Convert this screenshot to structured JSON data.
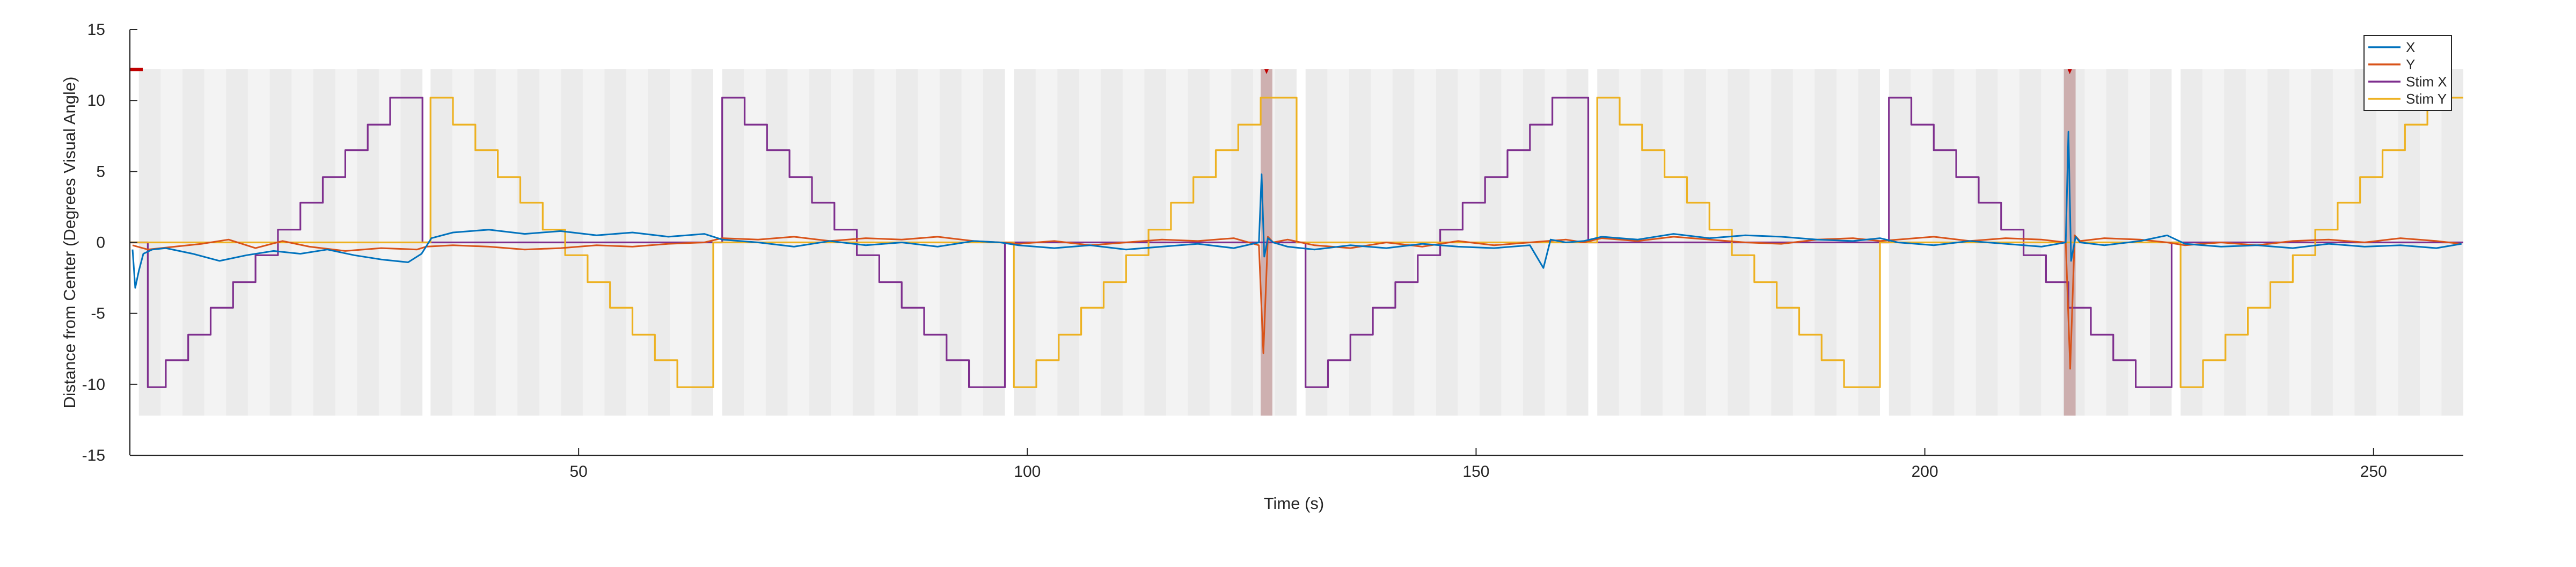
{
  "chart_data": {
    "type": "line",
    "title": "",
    "xlabel": "Time (s)",
    "ylabel": "Distance from Center (Degrees Visual Angle)",
    "xlim": [
      0,
      260
    ],
    "ylim": [
      -15,
      15
    ],
    "xticks": [
      50,
      100,
      150,
      200,
      250
    ],
    "yticks": [
      -15,
      -10,
      -5,
      0,
      5,
      10,
      15
    ],
    "grid": false,
    "legend_position": "top-right",
    "legend": [
      "X",
      "Y",
      "Stim X",
      "Stim Y"
    ],
    "colors": {
      "X": "#0072BD",
      "Y": "#D95319",
      "Stim X": "#7E2F8E",
      "Stim Y": "#EDB120",
      "trial_shading": "#e5e5e5",
      "event_shading": "#c7a3a3",
      "event_marker": "#c00000"
    },
    "trial_blocks": [
      {
        "start": 1.0,
        "end": 32.6
      },
      {
        "start": 33.5,
        "end": 65.0
      },
      {
        "start": 66.0,
        "end": 97.5
      },
      {
        "start": 98.5,
        "end": 130.0
      },
      {
        "start": 131.0,
        "end": 162.5
      },
      {
        "start": 163.5,
        "end": 195.0
      },
      {
        "start": 196.0,
        "end": 227.5
      },
      {
        "start": 228.5,
        "end": 260.0
      }
    ],
    "block_y_range": [
      -12.2,
      12.2
    ],
    "event_markers": [
      {
        "start": 126.0,
        "end": 127.3
      },
      {
        "start": 215.5,
        "end": 216.8
      }
    ],
    "series": [
      {
        "name": "Stim X",
        "step": true,
        "x": [
          0,
          1.0,
          2.0,
          4.0,
          6.5,
          9.0,
          11.5,
          14.0,
          16.5,
          19.0,
          21.5,
          24.0,
          26.5,
          29.0,
          31.5,
          32.6,
          33.5,
          66.0,
          66.0,
          68.5,
          71.0,
          73.5,
          76.0,
          78.5,
          81.0,
          83.5,
          86.0,
          88.5,
          91.0,
          93.5,
          96.0,
          97.5,
          98.5,
          131.0,
          131.0,
          133.5,
          136.0,
          138.5,
          141.0,
          143.5,
          146.0,
          148.5,
          151.0,
          153.5,
          156.0,
          158.5,
          161.0,
          162.5,
          163.5,
          196.0,
          196.0,
          198.5,
          201.0,
          203.5,
          206.0,
          208.5,
          211.0,
          213.5,
          216.0,
          218.5,
          221.0,
          223.5,
          226.0,
          227.5,
          228.5,
          260.0
        ],
        "y": [
          0,
          0,
          -10.2,
          -8.3,
          -6.5,
          -4.6,
          -2.8,
          -0.9,
          0.9,
          2.8,
          4.6,
          6.5,
          8.3,
          10.2,
          10.2,
          0,
          0,
          0,
          10.2,
          8.3,
          6.5,
          4.6,
          2.8,
          0.9,
          -0.9,
          -2.8,
          -4.6,
          -6.5,
          -8.3,
          -10.2,
          -10.2,
          0,
          0,
          0,
          -10.2,
          -8.3,
          -6.5,
          -4.6,
          -2.8,
          -0.9,
          0.9,
          2.8,
          4.6,
          6.5,
          8.3,
          10.2,
          10.2,
          0,
          0,
          0,
          10.2,
          8.3,
          6.5,
          4.6,
          2.8,
          0.9,
          -0.9,
          -2.8,
          -4.6,
          -6.5,
          -8.3,
          -10.2,
          -10.2,
          0,
          0,
          0
        ]
      },
      {
        "name": "Stim Y",
        "step": true,
        "x": [
          0,
          33.5,
          33.5,
          36.0,
          38.5,
          41.0,
          43.5,
          46.0,
          48.5,
          51.0,
          53.5,
          56.0,
          58.5,
          61.0,
          63.5,
          65.0,
          66.0,
          98.5,
          98.5,
          101.0,
          103.5,
          106.0,
          108.5,
          111.0,
          113.5,
          116.0,
          118.5,
          121.0,
          123.5,
          126.0,
          128.5,
          130.0,
          131.0,
          163.5,
          163.5,
          166.0,
          168.5,
          171.0,
          173.5,
          176.0,
          178.5,
          181.0,
          183.5,
          186.0,
          188.5,
          191.0,
          193.5,
          195.0,
          196.0,
          228.5,
          228.5,
          231.0,
          233.5,
          236.0,
          238.5,
          241.0,
          243.5,
          246.0,
          248.5,
          251.0,
          253.5,
          256.0,
          258.5,
          260.0
        ],
        "y": [
          0,
          0,
          10.2,
          8.3,
          6.5,
          4.6,
          2.8,
          0.9,
          -0.9,
          -2.8,
          -4.6,
          -6.5,
          -8.3,
          -10.2,
          -10.2,
          0,
          0,
          0,
          -10.2,
          -8.3,
          -6.5,
          -4.6,
          -2.8,
          -0.9,
          0.9,
          2.8,
          4.6,
          6.5,
          8.3,
          10.2,
          10.2,
          0,
          0,
          0,
          10.2,
          8.3,
          6.5,
          4.6,
          2.8,
          0.9,
          -0.9,
          -2.8,
          -4.6,
          -6.5,
          -8.3,
          -10.2,
          -10.2,
          0,
          0,
          0,
          -10.2,
          -8.3,
          -6.5,
          -4.6,
          -2.8,
          -0.9,
          0.9,
          2.8,
          4.6,
          6.5,
          8.3,
          10.2,
          10.2,
          10.2
        ]
      },
      {
        "name": "Y",
        "step": false,
        "x": [
          0.3,
          2,
          5,
          8,
          11,
          14,
          17,
          20,
          24,
          28,
          32,
          33,
          36,
          40,
          44,
          48,
          52,
          56,
          60,
          64,
          66,
          70,
          74,
          78,
          82,
          86,
          90,
          94,
          97,
          99,
          103,
          107,
          111,
          115,
          119,
          123,
          125.8,
          126.3,
          126.8,
          127.4,
          129,
          132,
          136,
          140,
          144,
          148,
          152,
          156,
          160,
          162,
          164,
          168,
          172,
          176,
          180,
          184,
          188,
          192,
          195,
          197,
          201,
          205,
          209,
          213,
          215.7,
          216.2,
          216.7,
          217.3,
          220,
          224,
          227,
          229,
          233,
          237,
          241,
          245,
          249,
          253,
          257,
          259.8
        ],
        "y": [
          -0.2,
          -0.5,
          -0.3,
          -0.1,
          0.2,
          -0.4,
          0.1,
          -0.3,
          -0.6,
          -0.4,
          -0.5,
          -0.3,
          -0.2,
          -0.3,
          -0.5,
          -0.4,
          -0.2,
          -0.3,
          -0.1,
          0.0,
          0.3,
          0.2,
          0.4,
          0.1,
          0.3,
          0.2,
          0.4,
          0.1,
          0.0,
          -0.1,
          0.1,
          -0.2,
          0.0,
          0.2,
          0.1,
          0.3,
          -0.2,
          -7.8,
          0.4,
          0.0,
          0.2,
          -0.2,
          -0.4,
          0.0,
          -0.3,
          0.1,
          -0.2,
          0.0,
          0.2,
          0.0,
          0.3,
          0.1,
          0.4,
          0.2,
          0.0,
          -0.1,
          0.2,
          0.3,
          0.1,
          0.2,
          0.4,
          0.1,
          0.3,
          0.2,
          0.0,
          -8.9,
          0.5,
          0.1,
          0.3,
          0.2,
          0.0,
          -0.2,
          0.0,
          -0.2,
          0.1,
          0.2,
          0.0,
          0.3,
          0.1,
          -0.1
        ]
      },
      {
        "name": "X",
        "step": false,
        "x": [
          0.3,
          0.6,
          1.0,
          1.5,
          2.5,
          4,
          7,
          10,
          13,
          16,
          19,
          22,
          25,
          28,
          31,
          32.5,
          33.6,
          36,
          40,
          44,
          48,
          52,
          56,
          60,
          64,
          66,
          70,
          74,
          78,
          82,
          86,
          90,
          94,
          97,
          99,
          103,
          107,
          111,
          115,
          119,
          123,
          125.8,
          126.1,
          126.4,
          126.8,
          127.4,
          129,
          132,
          136,
          140,
          144,
          148,
          152,
          156,
          157.5,
          158.3,
          160,
          162,
          164,
          168,
          172,
          176,
          180,
          184,
          188,
          192,
          195,
          197,
          201,
          205,
          209,
          213,
          215.7,
          216.0,
          216.3,
          216.8,
          217.3,
          220,
          224,
          227,
          229,
          233,
          237,
          241,
          245,
          249,
          253,
          257,
          259.8
        ],
        "y": [
          -0.5,
          -3.2,
          -2.0,
          -0.8,
          -0.5,
          -0.4,
          -0.8,
          -1.3,
          -0.9,
          -0.6,
          -0.8,
          -0.5,
          -0.9,
          -1.2,
          -1.4,
          -0.8,
          0.3,
          0.7,
          0.9,
          0.6,
          0.8,
          0.5,
          0.7,
          0.4,
          0.6,
          0.2,
          0.0,
          -0.3,
          0.1,
          -0.2,
          0.0,
          -0.3,
          0.1,
          0.0,
          -0.2,
          -0.4,
          -0.2,
          -0.5,
          -0.3,
          -0.1,
          -0.4,
          0.0,
          4.8,
          -1.0,
          0.3,
          0.0,
          -0.3,
          -0.5,
          -0.2,
          -0.4,
          -0.1,
          -0.3,
          -0.4,
          -0.2,
          -1.8,
          0.2,
          0.0,
          0.1,
          0.4,
          0.2,
          0.6,
          0.3,
          0.5,
          0.4,
          0.2,
          0.1,
          0.3,
          0.0,
          -0.2,
          0.1,
          -0.1,
          -0.3,
          0.0,
          7.8,
          -1.3,
          0.4,
          0.0,
          -0.2,
          0.1,
          0.5,
          -0.1,
          -0.3,
          -0.2,
          -0.4,
          -0.1,
          -0.3,
          -0.2,
          -0.4,
          -0.1
        ]
      }
    ]
  }
}
